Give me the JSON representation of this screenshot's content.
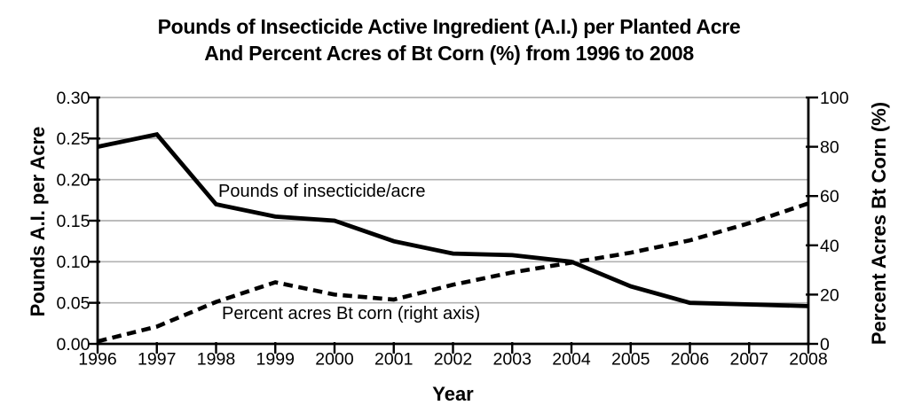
{
  "title": {
    "line1": "Pounds of Insecticide Active Ingredient (A.I.) per Planted Acre",
    "line2": "And Percent Acres of Bt Corn (%) from 1996 to 2008"
  },
  "chart_data": {
    "type": "line",
    "title": "Pounds of Insecticide Active Ingredient (A.I.) per Planted Acre And Percent Acres of Bt Corn (%) from 1996 to 2008",
    "x": [
      1996,
      1997,
      1998,
      1999,
      2000,
      2001,
      2002,
      2003,
      2004,
      2005,
      2006,
      2007,
      2008
    ],
    "xlabel": "Year",
    "series": [
      {
        "name": "Pounds of insecticide/acre",
        "axis": "left",
        "line_style": "solid",
        "color": "#000000",
        "values": [
          0.24,
          0.255,
          0.17,
          0.155,
          0.15,
          0.125,
          0.11,
          0.108,
          0.1,
          0.07,
          0.05,
          0.048,
          0.046
        ]
      },
      {
        "name": "Percent acres Bt corn (right axis)",
        "axis": "right",
        "line_style": "dashed",
        "color": "#000000",
        "values": [
          1,
          7,
          17,
          25,
          20,
          18,
          24,
          29,
          33,
          37,
          42,
          49,
          57
        ]
      }
    ],
    "left_axis": {
      "label": "Pounds A.I. per Acre",
      "range": [
        0,
        0.3
      ],
      "ticks": [
        0,
        0.05,
        0.1,
        0.15,
        0.2,
        0.25,
        0.3
      ],
      "tick_labels": [
        "0.00",
        "0.05",
        "0.10",
        "0.15",
        "0.20",
        "0.25",
        "0.30"
      ]
    },
    "right_axis": {
      "label": "Percent Acres Bt Corn (%)",
      "range": [
        0,
        100
      ],
      "ticks": [
        0,
        20,
        40,
        60,
        80,
        100
      ],
      "tick_labels": [
        "0",
        "20",
        "40",
        "60",
        "80",
        "100"
      ]
    },
    "x_axis": {
      "label": "Year",
      "tick_labels": [
        "1996",
        "1997",
        "1998",
        "1999",
        "2000",
        "2001",
        "2002",
        "2003",
        "2004",
        "2005",
        "2006",
        "2007",
        "2008"
      ]
    },
    "grid": "horizontal",
    "legend_position": "inline-annotations",
    "colors": {
      "line": "#000000",
      "grid": "#b2b2b2",
      "background": "#ffffff",
      "text": "#000000"
    }
  }
}
